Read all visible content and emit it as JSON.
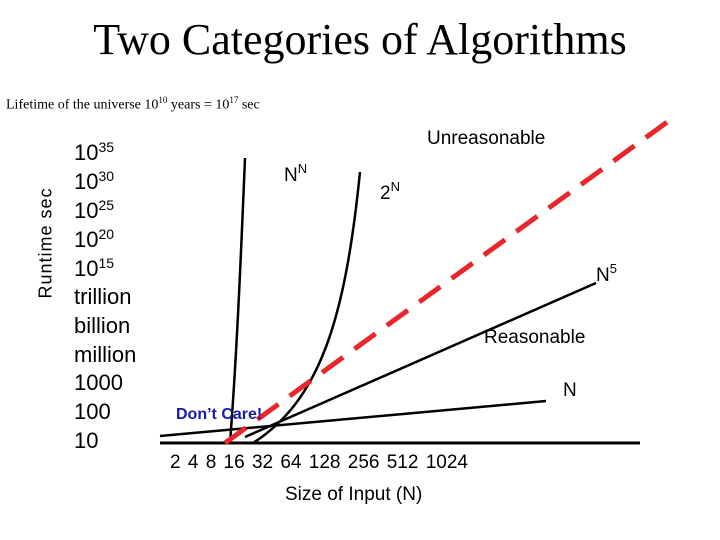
{
  "title": "Two Categories of Algorithms",
  "lifetime": {
    "prefix": "Lifetime of the universe 10",
    "exp1": "10",
    "middle": " years = 10",
    "exp2": "17",
    "suffix": " sec"
  },
  "y_axis_label": "Runtime sec",
  "y_ticks": [
    {
      "base": "10",
      "exp": "35"
    },
    {
      "base": "10",
      "exp": "30"
    },
    {
      "base": "10",
      "exp": "25"
    },
    {
      "base": "10",
      "exp": "20"
    },
    {
      "base": "10",
      "exp": "15"
    },
    {
      "base": "trillion",
      "exp": ""
    },
    {
      "base": "billion",
      "exp": ""
    },
    {
      "base": "million",
      "exp": ""
    },
    {
      "base": "1000",
      "exp": ""
    },
    {
      "base": "100",
      "exp": ""
    },
    {
      "base": "10",
      "exp": ""
    }
  ],
  "x_ticks": "2 4 8 16 32 64 128 256 512 1024",
  "x_axis_label": "Size of Input (N)",
  "curve_labels": {
    "nn_base": "N",
    "nn_exp": "N",
    "twon_base": "2",
    "twon_exp": "N",
    "n5_base": "N",
    "n5_exp": "5",
    "n": "N"
  },
  "region_labels": {
    "unreasonable": "Unreasonable",
    "reasonable": "Reasonable",
    "dont_care": "Don’t Care!"
  },
  "colors": {
    "boundary": "#e8262b",
    "dont_care": "#1a1aa6",
    "curves": "#000000"
  }
}
